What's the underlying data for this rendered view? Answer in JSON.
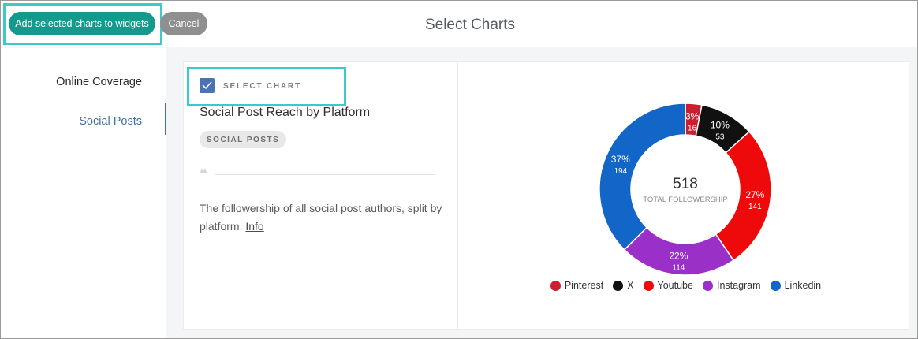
{
  "header": {
    "add_button_label": "Add selected charts to widgets",
    "cancel_button_label": "Cancel",
    "title": "Select Charts"
  },
  "sidebar": {
    "items": [
      {
        "label": "Online Coverage",
        "active": false
      },
      {
        "label": "Social Posts",
        "active": true
      }
    ]
  },
  "card": {
    "select_label": "SELECT CHART",
    "checked": true,
    "chart_title": "Social Post Reach by Platform",
    "tag": "SOCIAL POSTS",
    "description": "The followership of all social post authors, split by platform.",
    "info_link": "Info"
  },
  "chart_data": {
    "type": "pie",
    "title": "",
    "center_value": "518",
    "center_label": "TOTAL FOLLOWERSHIP",
    "slices": [
      {
        "name": "Pinterest",
        "value": 16,
        "percent": "3%",
        "color": "#c8202f"
      },
      {
        "name": "X",
        "value": 53,
        "percent": "10%",
        "color": "#111111"
      },
      {
        "name": "Youtube",
        "value": 141,
        "percent": "27%",
        "color": "#ee0a0a"
      },
      {
        "name": "Instagram",
        "value": 114,
        "percent": "22%",
        "color": "#9a30c8"
      },
      {
        "name": "Linkedin",
        "value": 194,
        "percent": "37%",
        "color": "#1266c8"
      }
    ],
    "legend_position": "bottom"
  }
}
